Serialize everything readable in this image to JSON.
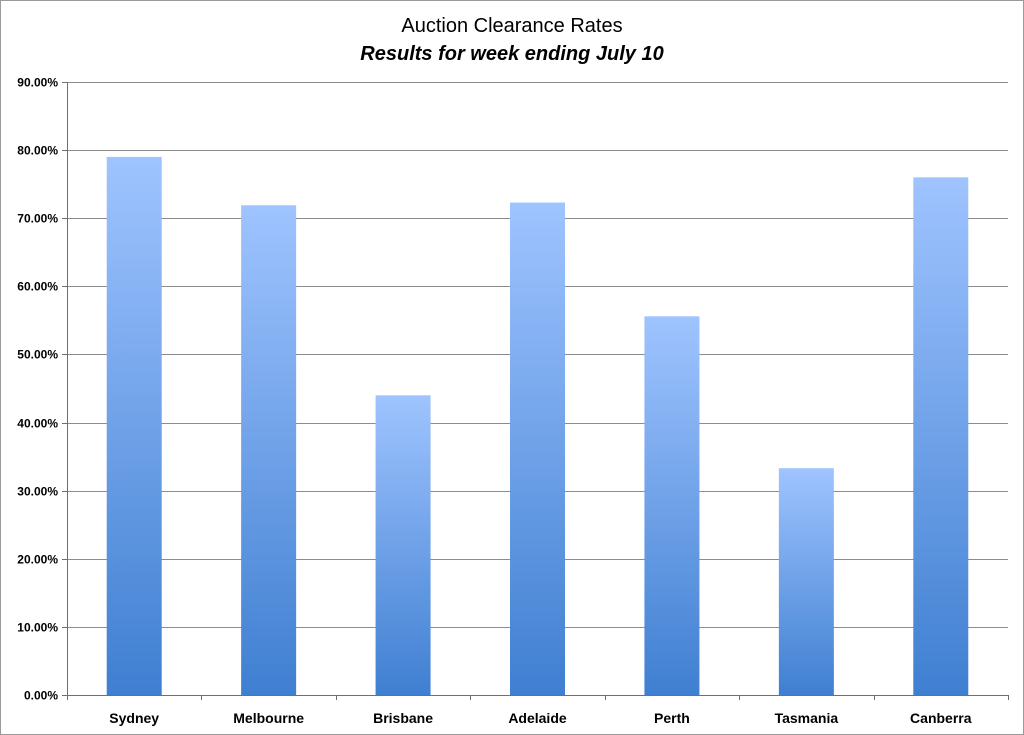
{
  "chart_data": {
    "type": "bar",
    "title": "Auction Clearance Rates",
    "subtitle": "Results for week ending July 10",
    "xlabel": "",
    "ylabel": "",
    "categories": [
      "Sydney",
      "Melbourne",
      "Brisbane",
      "Adelaide",
      "Perth",
      "Tasmania",
      "Canberra"
    ],
    "values": [
      0.79,
      0.719,
      0.44,
      0.723,
      0.556,
      0.333,
      0.76
    ],
    "ylim": [
      0,
      0.9
    ],
    "y_ticks": [
      0,
      0.1,
      0.2,
      0.3,
      0.4,
      0.5,
      0.6,
      0.7,
      0.8,
      0.9
    ],
    "y_tick_labels": [
      "0.00%",
      "10.00%",
      "20.00%",
      "30.00%",
      "40.00%",
      "50.00%",
      "60.00%",
      "70.00%",
      "80.00%",
      "90.00%"
    ],
    "grid": true,
    "legend": "none",
    "colors": {
      "bar_top": "#9fc4ff",
      "bar_bottom": "#3f7fd1",
      "grid": "#8c8c8c",
      "axis": "#6f6f6f"
    }
  }
}
